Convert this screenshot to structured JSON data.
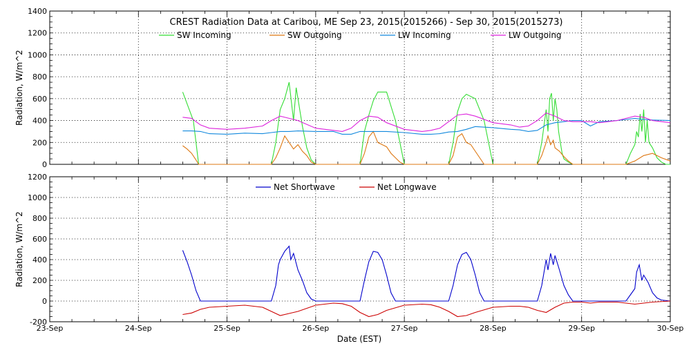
{
  "chart_data": [
    {
      "type": "line",
      "title": "CREST Radiation Data at Caribou, ME   Sep 23, 2015(2015266) - Sep 30, 2015(2015273)",
      "xlabel": "",
      "ylabel": "Radiation, W/m^2",
      "xlim": [
        "23-Sep",
        "30-Sep"
      ],
      "ylim": [
        0,
        1400
      ],
      "yticks": [
        0,
        200,
        400,
        600,
        800,
        1000,
        1200,
        1400
      ],
      "grid": true,
      "legend": "top-center",
      "series": [
        {
          "name": "SW Incoming",
          "color": "#33dd33",
          "x": [
            1.5,
            1.62,
            1.68,
            1.7,
            2.5,
            2.55,
            2.6,
            2.65,
            2.7,
            2.75,
            2.78,
            2.8,
            2.85,
            2.9,
            2.95,
            3.0,
            3.05,
            3.1,
            3.2,
            3.3,
            3.5,
            3.55,
            3.6,
            3.65,
            3.7,
            3.8,
            3.9,
            4.0,
            4.1,
            4.2,
            4.3,
            4.5,
            4.55,
            4.6,
            4.65,
            4.7,
            4.8,
            4.9,
            5.0,
            5.1,
            5.2,
            5.3,
            5.5,
            5.55,
            5.6,
            5.62,
            5.64,
            5.66,
            5.68,
            5.7,
            5.72,
            5.74,
            5.76,
            5.78,
            5.8,
            5.85,
            5.9,
            5.95,
            6.0,
            6.5,
            6.55,
            6.6,
            6.62,
            6.64,
            6.66,
            6.68,
            6.7,
            6.72,
            6.74,
            6.76,
            6.8,
            6.85,
            6.9,
            6.95,
            7.0
          ],
          "values": [
            660,
            400,
            0,
            0,
            0,
            200,
            500,
            600,
            750,
            400,
            700,
            600,
            350,
            150,
            40,
            0,
            0,
            0,
            0,
            0,
            0,
            300,
            450,
            580,
            660,
            660,
            400,
            0,
            0,
            0,
            0,
            0,
            200,
            480,
            600,
            640,
            600,
            400,
            0,
            0,
            0,
            0,
            0,
            200,
            500,
            300,
            600,
            650,
            400,
            600,
            500,
            300,
            200,
            100,
            50,
            20,
            0,
            0,
            0,
            0,
            100,
            180,
            300,
            250,
            460,
            300,
            500,
            200,
            400,
            200,
            150,
            60,
            20,
            0,
            0
          ]
        },
        {
          "name": "SW Outgoing",
          "color": "#dd7711",
          "x": [
            1.5,
            1.55,
            1.6,
            1.65,
            1.68,
            1.7,
            2.5,
            2.55,
            2.6,
            2.65,
            2.7,
            2.75,
            2.8,
            2.85,
            2.9,
            2.95,
            3.0,
            3.5,
            3.55,
            3.6,
            3.65,
            3.7,
            3.75,
            3.8,
            3.85,
            3.9,
            3.95,
            4.0,
            4.5,
            4.55,
            4.6,
            4.65,
            4.7,
            4.75,
            4.8,
            4.85,
            4.9,
            5.5,
            5.55,
            5.6,
            5.62,
            5.65,
            5.68,
            5.7,
            5.75,
            5.8,
            5.85,
            5.9,
            6.5,
            6.6,
            6.7,
            6.8,
            6.9,
            7.0
          ],
          "values": [
            170,
            140,
            100,
            40,
            0,
            0,
            0,
            60,
            150,
            260,
            200,
            140,
            180,
            120,
            80,
            20,
            0,
            0,
            100,
            250,
            300,
            200,
            180,
            160,
            100,
            60,
            20,
            0,
            0,
            80,
            250,
            280,
            200,
            180,
            120,
            60,
            0,
            0,
            80,
            200,
            260,
            180,
            220,
            150,
            120,
            70,
            30,
            0,
            0,
            30,
            80,
            100,
            60,
            30
          ],
          "x_note": "days after 23-Sep"
        },
        {
          "name": "LW Incoming",
          "color": "#1188dd",
          "x": [
            0,
            1.5,
            1.6,
            1.7,
            1.8,
            2.0,
            2.2,
            2.4,
            2.5,
            2.6,
            2.7,
            2.8,
            3.0,
            3.2,
            3.3,
            3.4,
            3.5,
            3.6,
            3.7,
            3.8,
            4.0,
            4.2,
            4.3,
            4.4,
            4.5,
            4.6,
            4.7,
            4.8,
            5.0,
            5.2,
            5.3,
            5.4,
            5.5,
            5.6,
            5.7,
            5.8,
            5.9,
            6.0,
            6.1,
            6.2,
            6.3,
            6.4,
            6.5,
            6.6,
            6.7,
            6.8,
            7.0
          ],
          "values": [
            null,
            305,
            305,
            300,
            280,
            275,
            285,
            280,
            290,
            300,
            300,
            305,
            300,
            300,
            275,
            275,
            300,
            300,
            300,
            300,
            290,
            275,
            275,
            280,
            295,
            300,
            320,
            345,
            335,
            320,
            315,
            300,
            310,
            360,
            380,
            390,
            400,
            400,
            350,
            390,
            395,
            400,
            410,
            420,
            410,
            405,
            400
          ]
        },
        {
          "name": "LW Outgoing",
          "color": "#dd22dd",
          "x": [
            1.5,
            1.6,
            1.7,
            1.8,
            2.0,
            2.2,
            2.4,
            2.5,
            2.6,
            2.7,
            2.8,
            3.0,
            3.2,
            3.3,
            3.4,
            3.5,
            3.6,
            3.7,
            3.8,
            4.0,
            4.2,
            4.3,
            4.4,
            4.5,
            4.6,
            4.7,
            4.8,
            5.0,
            5.2,
            5.3,
            5.4,
            5.5,
            5.6,
            5.7,
            5.8,
            5.9,
            6.0,
            6.1,
            6.2,
            6.3,
            6.4,
            6.5,
            6.6,
            6.7,
            6.8,
            7.0
          ],
          "values": [
            430,
            420,
            360,
            330,
            320,
            330,
            350,
            400,
            440,
            420,
            400,
            330,
            310,
            300,
            330,
            400,
            440,
            430,
            380,
            320,
            300,
            310,
            330,
            390,
            450,
            460,
            440,
            380,
            360,
            340,
            350,
            400,
            470,
            440,
            400,
            390,
            390,
            390,
            380,
            390,
            400,
            420,
            440,
            430,
            400,
            380
          ]
        }
      ]
    },
    {
      "type": "line",
      "title": "",
      "xlabel": "Date (EST)",
      "ylabel": "Radiation, W/m^2",
      "xlim": [
        "23-Sep",
        "30-Sep"
      ],
      "ylim": [
        -200,
        1200
      ],
      "yticks": [
        -200,
        0,
        200,
        400,
        600,
        800,
        1000,
        1200
      ],
      "categories": [
        "23-Sep",
        "24-Sep",
        "25-Sep",
        "26-Sep",
        "27-Sep",
        "28-Sep",
        "29-Sep",
        "30-Sep"
      ],
      "grid": true,
      "legend": "top-center",
      "series": [
        {
          "name": "Net Shortwave",
          "color": "#0000cc",
          "x": [
            1.5,
            1.55,
            1.6,
            1.65,
            1.7,
            2.5,
            2.55,
            2.58,
            2.6,
            2.65,
            2.7,
            2.72,
            2.75,
            2.8,
            2.85,
            2.9,
            2.95,
            3.0,
            3.5,
            3.55,
            3.6,
            3.65,
            3.7,
            3.75,
            3.8,
            3.85,
            3.9,
            4.0,
            4.5,
            4.55,
            4.6,
            4.65,
            4.7,
            4.75,
            4.8,
            4.85,
            4.9,
            5.0,
            5.5,
            5.55,
            5.6,
            5.62,
            5.65,
            5.68,
            5.7,
            5.75,
            5.8,
            5.85,
            5.9,
            6.5,
            6.55,
            6.6,
            6.62,
            6.65,
            6.68,
            6.7,
            6.75,
            6.8,
            6.85,
            6.9,
            7.0
          ],
          "values": [
            490,
            380,
            250,
            100,
            0,
            0,
            150,
            350,
            400,
            480,
            530,
            400,
            460,
            300,
            200,
            80,
            20,
            0,
            0,
            200,
            380,
            480,
            470,
            400,
            250,
            80,
            0,
            0,
            0,
            150,
            350,
            450,
            470,
            400,
            250,
            80,
            0,
            0,
            0,
            150,
            400,
            300,
            460,
            350,
            440,
            300,
            150,
            60,
            0,
            0,
            60,
            120,
            280,
            350,
            200,
            250,
            180,
            80,
            30,
            10,
            0
          ]
        },
        {
          "name": "Net Longwave",
          "color": "#cc0000",
          "x": [
            1.5,
            1.6,
            1.7,
            1.8,
            2.0,
            2.2,
            2.4,
            2.5,
            2.6,
            2.7,
            2.8,
            3.0,
            3.2,
            3.3,
            3.4,
            3.5,
            3.6,
            3.7,
            3.8,
            4.0,
            4.2,
            4.3,
            4.4,
            4.5,
            4.6,
            4.7,
            4.8,
            5.0,
            5.2,
            5.3,
            5.4,
            5.5,
            5.6,
            5.7,
            5.8,
            5.9,
            6.0,
            6.1,
            6.2,
            6.3,
            6.4,
            6.5,
            6.6,
            6.7,
            6.8,
            7.0
          ],
          "values": [
            -130,
            -115,
            -80,
            -60,
            -50,
            -40,
            -60,
            -100,
            -140,
            -120,
            -100,
            -40,
            -20,
            -25,
            -50,
            -110,
            -150,
            -130,
            -90,
            -40,
            -30,
            -35,
            -60,
            -100,
            -150,
            -140,
            -110,
            -60,
            -50,
            -50,
            -60,
            -90,
            -110,
            -60,
            -20,
            -10,
            -10,
            -20,
            -10,
            -10,
            -10,
            -20,
            -30,
            -20,
            -10,
            0
          ]
        }
      ]
    }
  ]
}
